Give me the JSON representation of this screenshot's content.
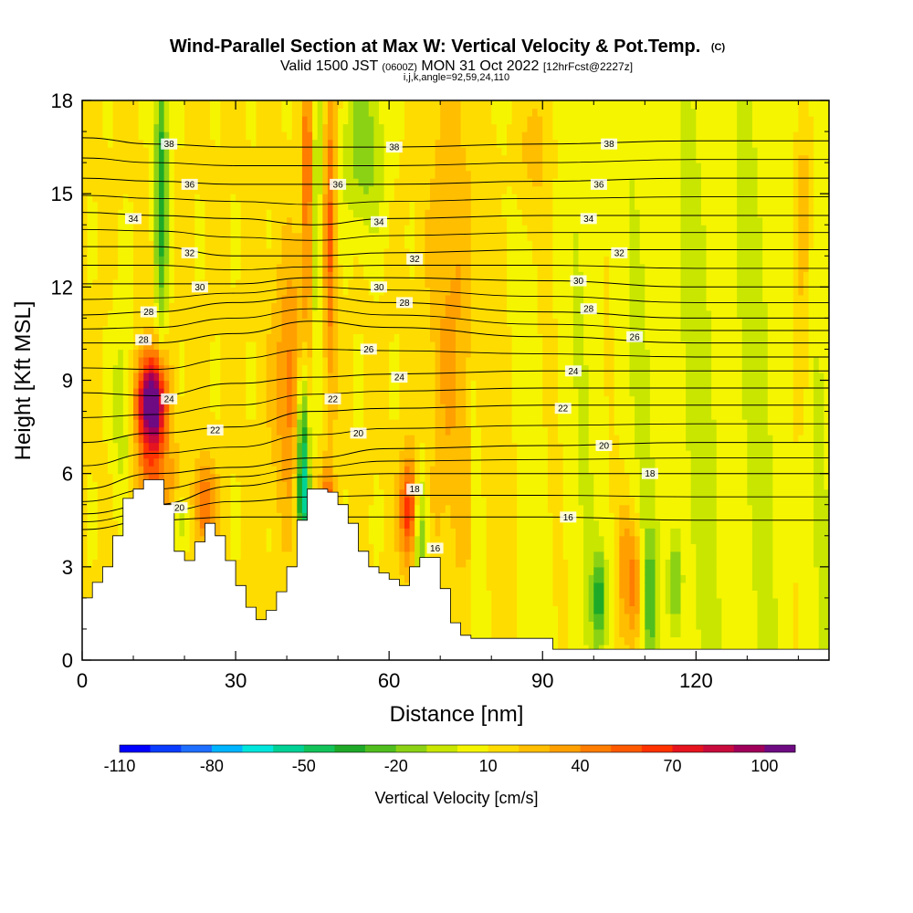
{
  "chart_data": {
    "type": "heatmap",
    "title": "Wind-Parallel Section at Max W: Vertical Velocity & Pot.Temp.",
    "title_mark": "(C)",
    "subtitle_main": "Valid 1500 JST",
    "subtitle_utc": "(0600Z)",
    "subtitle_date": "MON 31 Oct 2022",
    "subtitle_fcst": "[12hrFcst@2227z]",
    "subtitle_indices": "i,j,k,angle=92,59,24,110",
    "xlabel": "Distance [nm]",
    "ylabel": "Height [Kft MSL]",
    "xlim": [
      0,
      146
    ],
    "ylim": [
      0,
      18
    ],
    "x_ticks": [
      0,
      30,
      60,
      90,
      120
    ],
    "y_ticks": [
      0,
      3,
      6,
      9,
      12,
      15,
      18
    ],
    "x_tick_labels": [
      "0",
      "30",
      "60",
      "90",
      "120"
    ],
    "y_tick_labels": [
      "0",
      "3",
      "6",
      "9",
      "12",
      "15",
      "18"
    ],
    "colorbar": {
      "label": "Vertical Velocity [cm/s]",
      "min": -110,
      "max": 110,
      "step": 10,
      "tick_values": [
        -110,
        -80,
        -50,
        -20,
        10,
        40,
        70,
        100
      ],
      "tick_labels": [
        "-110",
        "-80",
        "-50",
        "-20",
        "10",
        "40",
        "70",
        "100"
      ],
      "colors": [
        "#0000ff",
        "#0a3cff",
        "#1e6eff",
        "#00b4ff",
        "#00e6dc",
        "#00d296",
        "#12c35a",
        "#1eaa28",
        "#50be1e",
        "#8cd214",
        "#c8e600",
        "#f5f500",
        "#ffdc00",
        "#ffbe00",
        "#ffa000",
        "#ff7d00",
        "#ff5a00",
        "#ff3200",
        "#e6141e",
        "#c80a3c",
        "#a0005a",
        "#6e0a82"
      ]
    },
    "terrain_profile": {
      "x": [
        0,
        2,
        4,
        6,
        8,
        10,
        12,
        14,
        16,
        18,
        20,
        22,
        24,
        26,
        28,
        30,
        32,
        34,
        36,
        38,
        40,
        42,
        44,
        46,
        48,
        50,
        52,
        54,
        56,
        58,
        60,
        62,
        64,
        66,
        68,
        70,
        72,
        74,
        76,
        80,
        90,
        92,
        100,
        110,
        120,
        130,
        140,
        146
      ],
      "height_kft": [
        2.0,
        2.5,
        3.0,
        4.0,
        5.2,
        5.5,
        5.8,
        5.8,
        5.0,
        3.5,
        3.2,
        3.8,
        4.4,
        4.0,
        3.2,
        2.4,
        1.7,
        1.3,
        1.6,
        2.2,
        3.0,
        4.5,
        5.5,
        5.5,
        5.4,
        5.0,
        4.4,
        3.5,
        3.0,
        2.8,
        2.6,
        2.4,
        3.0,
        3.3,
        3.3,
        2.3,
        1.2,
        0.8,
        0.7,
        0.7,
        0.7,
        0.35,
        0.35,
        0.35,
        0.35,
        0.35,
        0.35,
        0.35
      ]
    },
    "w_features": [
      {
        "x": 13.5,
        "z": 8.3,
        "sx": 2.0,
        "sz": 1.1,
        "w": 110
      },
      {
        "x": 14.5,
        "z": 5.0,
        "sx": 3.0,
        "sz": 1.5,
        "w": 40
      },
      {
        "x": 15.5,
        "z": 15.5,
        "sx": 0.9,
        "sz": 3.5,
        "w": -50
      },
      {
        "x": 8.0,
        "z": 8.0,
        "sx": 1.6,
        "sz": 2.5,
        "w": -20
      },
      {
        "x": 19.0,
        "z": 4.4,
        "sx": 1.2,
        "sz": 0.8,
        "w": -30
      },
      {
        "x": 24.0,
        "z": 5.0,
        "sx": 1.5,
        "sz": 1.0,
        "w": 40
      },
      {
        "x": 41.0,
        "z": 8.8,
        "sx": 2.5,
        "sz": 2.8,
        "w": 35
      },
      {
        "x": 43.2,
        "z": 6.2,
        "sx": 0.9,
        "sz": 2.6,
        "w": -80
      },
      {
        "x": 45.5,
        "z": 14.0,
        "sx": 1.0,
        "sz": 4.0,
        "w": -30
      },
      {
        "x": 44.2,
        "z": 15.0,
        "sx": 0.8,
        "sz": 3.5,
        "w": 50
      },
      {
        "x": 48.5,
        "z": 14.0,
        "sx": 0.9,
        "sz": 4.0,
        "w": 40
      },
      {
        "x": 55.0,
        "z": 16.5,
        "sx": 3.0,
        "sz": 2.0,
        "w": -30
      },
      {
        "x": 48.0,
        "z": 4.5,
        "sx": 1.0,
        "sz": 1.0,
        "w": 60
      },
      {
        "x": 64.0,
        "z": 4.8,
        "sx": 1.3,
        "sz": 1.2,
        "w": 60
      },
      {
        "x": 66.0,
        "z": 4.2,
        "sx": 1.0,
        "sz": 1.5,
        "w": -40
      },
      {
        "x": 72.0,
        "z": 11.0,
        "sx": 3.0,
        "sz": 6.0,
        "w": 20
      },
      {
        "x": 88.0,
        "z": 16.5,
        "sx": 3.0,
        "sz": 1.5,
        "w": 15
      },
      {
        "x": 101.0,
        "z": 2.0,
        "sx": 1.0,
        "sz": 1.0,
        "w": -40
      },
      {
        "x": 106.0,
        "z": 3.0,
        "sx": 0.8,
        "sz": 1.6,
        "w": 30
      },
      {
        "x": 108.0,
        "z": 2.5,
        "sx": 0.8,
        "sz": 1.5,
        "w": 40
      },
      {
        "x": 111.0,
        "z": 2.0,
        "sx": 0.8,
        "sz": 1.5,
        "w": -30
      },
      {
        "x": 116.0,
        "z": 2.5,
        "sx": 0.9,
        "sz": 1.2,
        "w": -30
      },
      {
        "x": 141.0,
        "z": 14.0,
        "sx": 1.2,
        "sz": 4.0,
        "w": 25
      },
      {
        "x": 83.0,
        "z": 8.0,
        "sx": 4.0,
        "sz": 8.0,
        "w": 8
      },
      {
        "x": 125.0,
        "z": 10.0,
        "sx": 10.0,
        "sz": 8.0,
        "w": -5
      }
    ],
    "theta_contours": [
      {
        "value": 16,
        "label": "16",
        "levels_kft": [
          4.2,
          4.5,
          4.6,
          4.6,
          4.6,
          4.6,
          4.5,
          4.5
        ],
        "label_x": 95,
        "label_z": 4.6
      },
      {
        "value": 18,
        "label": "18",
        "levels_kft": [
          4.7,
          5.0,
          5.6,
          5.9,
          6.0,
          6.0,
          6.0,
          6.0
        ],
        "label_x": 111,
        "label_z": 6.0
      },
      {
        "value": 20,
        "label": "20",
        "levels_kft": [
          5.5,
          6.0,
          6.2,
          6.5,
          6.8,
          6.9,
          7.0,
          7.0
        ],
        "label_x": 102,
        "label_z": 6.9
      },
      {
        "value": 22,
        "label": "22",
        "levels_kft": [
          7.0,
          7.3,
          7.5,
          8.0,
          8.1,
          8.2,
          8.2,
          8.2
        ],
        "label_x": 94,
        "label_z": 8.1
      },
      {
        "value": 24,
        "label": "24",
        "levels_kft": [
          8.6,
          8.5,
          8.9,
          9.1,
          9.2,
          9.3,
          9.3,
          9.3
        ],
        "label_x": 96,
        "label_z": 9.3
      },
      {
        "value": 26,
        "label": "26",
        "levels_kft": [
          10.2,
          10.2,
          10.5,
          10.9,
          10.7,
          10.4,
          10.2,
          10.2
        ],
        "label_x": 108,
        "label_z": 10.4
      },
      {
        "value": 28,
        "label": "28",
        "levels_kft": [
          11.1,
          11.2,
          11.5,
          11.7,
          11.5,
          11.2,
          11.0,
          11.0
        ],
        "label_x": 99,
        "label_z": 11.3
      },
      {
        "value": 30,
        "label": "30",
        "levels_kft": [
          12.1,
          12.1,
          12.1,
          12.3,
          12.3,
          12.2,
          12.0,
          12.0
        ],
        "label_x": 97,
        "label_z": 12.2
      },
      {
        "value": 32,
        "label": "32",
        "levels_kft": [
          13.3,
          13.3,
          13.0,
          13.0,
          13.1,
          13.2,
          13.2,
          13.2
        ],
        "label_x": 105,
        "label_z": 13.1
      },
      {
        "value": 34,
        "label": "34",
        "levels_kft": [
          14.4,
          14.3,
          14.2,
          14.0,
          14.2,
          14.3,
          14.3,
          14.3
        ],
        "label_x": 99,
        "label_z": 14.2
      },
      {
        "value": 36,
        "label": "36",
        "levels_kft": [
          15.5,
          15.4,
          15.3,
          15.3,
          15.3,
          15.4,
          15.5,
          15.5
        ],
        "label_x": 101,
        "label_z": 15.3
      },
      {
        "value": 38,
        "label": "38",
        "levels_kft": [
          16.8,
          16.6,
          16.5,
          16.5,
          16.5,
          16.6,
          16.7,
          16.7
        ],
        "label_x": 103,
        "label_z": 16.6
      }
    ],
    "theta_contour_x": [
      0,
      14,
      30,
      45,
      60,
      90,
      120,
      146
    ],
    "plot_labels_extra": [
      {
        "label": "38",
        "x": 17,
        "z": 16.6
      },
      {
        "label": "38",
        "x": 61,
        "z": 16.5
      },
      {
        "label": "36",
        "x": 21,
        "z": 15.3
      },
      {
        "label": "36",
        "x": 50,
        "z": 15.3
      },
      {
        "label": "34",
        "x": 10,
        "z": 14.2
      },
      {
        "label": "34",
        "x": 58,
        "z": 14.1
      },
      {
        "label": "32",
        "x": 21,
        "z": 13.1
      },
      {
        "label": "32",
        "x": 65,
        "z": 12.9
      },
      {
        "label": "30",
        "x": 23,
        "z": 12.0
      },
      {
        "label": "30",
        "x": 58,
        "z": 12.0
      },
      {
        "label": "28",
        "x": 13,
        "z": 11.2
      },
      {
        "label": "28",
        "x": 63,
        "z": 11.5
      },
      {
        "label": "28",
        "x": 12,
        "z": 10.3
      },
      {
        "label": "26",
        "x": 56,
        "z": 10.0
      },
      {
        "label": "24",
        "x": 17,
        "z": 8.4
      },
      {
        "label": "24",
        "x": 62,
        "z": 9.1
      },
      {
        "label": "22",
        "x": 26,
        "z": 7.4
      },
      {
        "label": "22",
        "x": 49,
        "z": 8.4
      },
      {
        "label": "20",
        "x": 54,
        "z": 7.3
      },
      {
        "label": "20",
        "x": 19,
        "z": 4.9
      },
      {
        "label": "18",
        "x": 65,
        "z": 5.5
      },
      {
        "label": "16",
        "x": 69,
        "z": 3.6
      }
    ]
  }
}
